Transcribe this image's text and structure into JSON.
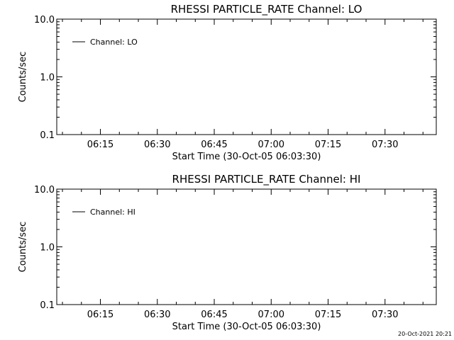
{
  "chart_data": [
    {
      "type": "line",
      "title": "RHESSI PARTICLE_RATE Channel: LO",
      "xlabel": "Start Time (30-Oct-05 06:03:30)",
      "ylabel": "Counts/sec",
      "y_scale": "log",
      "ylim": [
        0.1,
        10.0
      ],
      "y_ticks": [
        "0.1",
        "1.0",
        "10.0"
      ],
      "x_ticks": [
        "06:15",
        "06:30",
        "06:45",
        "07:00",
        "07:15",
        "07:30"
      ],
      "xlim": [
        "06:03:30",
        "07:43:30"
      ],
      "legend_position": "top-left",
      "series": [
        {
          "name": "Channel: LO",
          "values": []
        }
      ]
    },
    {
      "type": "line",
      "title": "RHESSI PARTICLE_RATE Channel: HI",
      "xlabel": "Start Time (30-Oct-05 06:03:30)",
      "ylabel": "Counts/sec",
      "y_scale": "log",
      "ylim": [
        0.1,
        10.0
      ],
      "y_ticks": [
        "0.1",
        "1.0",
        "10.0"
      ],
      "x_ticks": [
        "06:15",
        "06:30",
        "06:45",
        "07:00",
        "07:15",
        "07:30"
      ],
      "xlim": [
        "06:03:30",
        "07:43:30"
      ],
      "legend_position": "top-left",
      "series": [
        {
          "name": "Channel: HI",
          "values": []
        }
      ]
    }
  ],
  "timestamp": "20-Oct-2021 20:21"
}
